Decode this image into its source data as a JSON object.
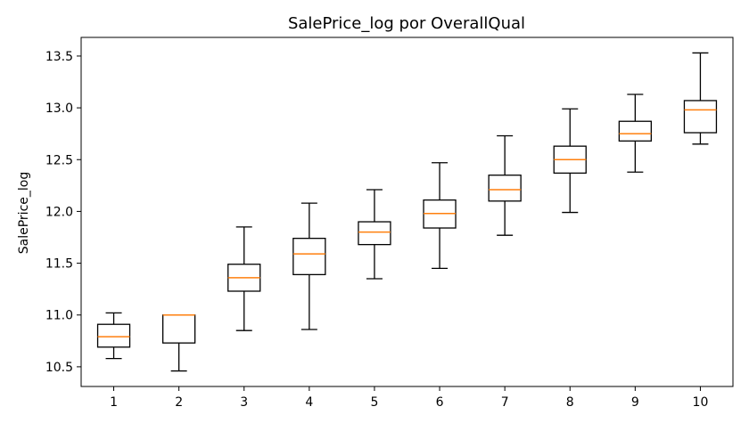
{
  "chart_data": {
    "type": "box",
    "title": "SalePrice_log por OverallQual",
    "xlabel": "",
    "ylabel": "SalePrice_log",
    "categories": [
      "1",
      "2",
      "3",
      "4",
      "5",
      "6",
      "7",
      "8",
      "9",
      "10"
    ],
    "ylim": [
      10.31,
      13.68
    ],
    "yticks": [
      "10.5",
      "11.0",
      "11.5",
      "12.0",
      "12.5",
      "13.0",
      "13.5"
    ],
    "boxes": [
      {
        "category": "1",
        "whisker_low": 10.58,
        "q1": 10.69,
        "median": 10.79,
        "q3": 10.91,
        "whisker_high": 11.02
      },
      {
        "category": "2",
        "whisker_low": 10.46,
        "q1": 10.73,
        "median": 11.0,
        "q3": 11.0,
        "whisker_high": 11.0
      },
      {
        "category": "3",
        "whisker_low": 10.85,
        "q1": 11.23,
        "median": 11.36,
        "q3": 11.49,
        "whisker_high": 11.85
      },
      {
        "category": "4",
        "whisker_low": 10.86,
        "q1": 11.39,
        "median": 11.59,
        "q3": 11.74,
        "whisker_high": 12.08
      },
      {
        "category": "5",
        "whisker_low": 11.35,
        "q1": 11.68,
        "median": 11.8,
        "q3": 11.9,
        "whisker_high": 12.21
      },
      {
        "category": "6",
        "whisker_low": 11.45,
        "q1": 11.84,
        "median": 11.98,
        "q3": 12.11,
        "whisker_high": 12.47
      },
      {
        "category": "7",
        "whisker_low": 11.77,
        "q1": 12.1,
        "median": 12.21,
        "q3": 12.35,
        "whisker_high": 12.73
      },
      {
        "category": "8",
        "whisker_low": 11.99,
        "q1": 12.37,
        "median": 12.5,
        "q3": 12.63,
        "whisker_high": 12.99
      },
      {
        "category": "9",
        "whisker_low": 12.38,
        "q1": 12.68,
        "median": 12.75,
        "q3": 12.87,
        "whisker_high": 13.13
      },
      {
        "category": "10",
        "whisker_low": 12.65,
        "q1": 12.76,
        "median": 12.98,
        "q3": 13.07,
        "whisker_high": 13.53
      }
    ],
    "grid": false,
    "colors": {
      "box_edge": "#000000",
      "median": "#ff7f0e",
      "whisker": "#000000",
      "background": "#ffffff"
    }
  }
}
